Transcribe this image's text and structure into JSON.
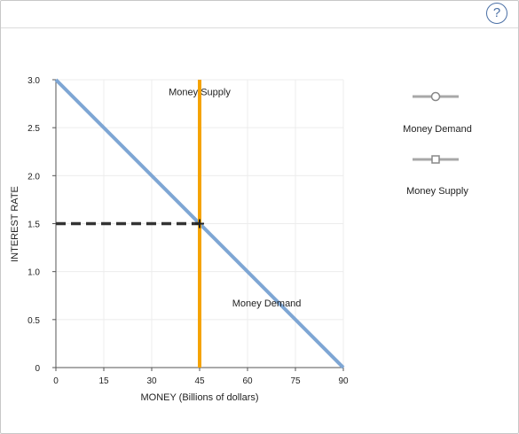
{
  "chart_data": {
    "type": "line",
    "xlabel": "MONEY (Billions of dollars)",
    "ylabel": "INTEREST RATE",
    "xlim": [
      0,
      90
    ],
    "ylim": [
      0,
      3.0
    ],
    "x_ticks": [
      0,
      15,
      30,
      45,
      60,
      75,
      90
    ],
    "y_ticks": [
      0,
      0.5,
      1.0,
      1.5,
      2.0,
      2.5,
      3.0
    ],
    "x_tick_labels": [
      "0",
      "15",
      "30",
      "45",
      "60",
      "75",
      "90"
    ],
    "y_tick_labels": [
      "0",
      "0.5",
      "1.0",
      "1.5",
      "2.0",
      "2.5",
      "3.0"
    ],
    "grid": true,
    "series": [
      {
        "name": "Money Demand",
        "color": "#7ea6d4",
        "x": [
          0,
          90
        ],
        "y": [
          3.0,
          0
        ]
      },
      {
        "name": "Money Supply",
        "color": "#f5a300",
        "x": [
          45,
          45
        ],
        "y": [
          3.0,
          0
        ]
      }
    ],
    "equilibrium": {
      "x": 45,
      "y": 1.5
    },
    "annotations": [
      {
        "text": "Money Supply",
        "x": 45,
        "y": 2.95
      },
      {
        "text": "Money Demand",
        "x": 66,
        "y": 0.75
      }
    ],
    "legend": {
      "placement": "right",
      "items": [
        {
          "label": "Money Demand",
          "marker": "circle",
          "color": "#a8a8a8"
        },
        {
          "label": "Money Supply",
          "marker": "square",
          "color": "#a8a8a8"
        }
      ]
    }
  },
  "help_label": "?"
}
